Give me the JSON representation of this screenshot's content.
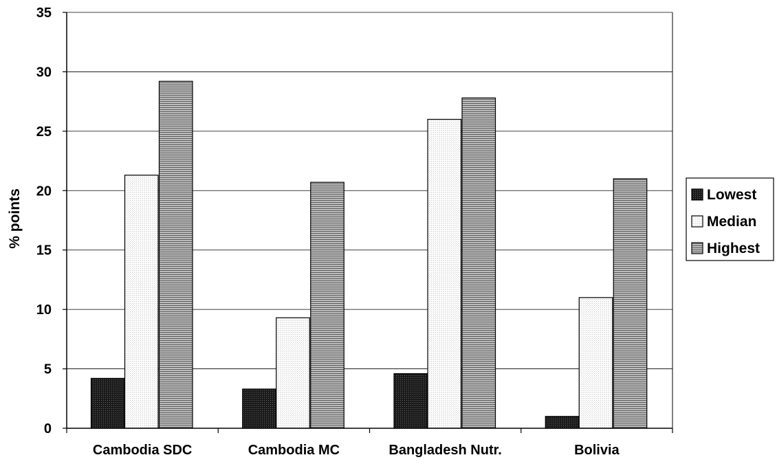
{
  "chart_data": {
    "type": "bar",
    "title": "",
    "xlabel": "",
    "ylabel": "% points",
    "ylim": [
      0,
      35
    ],
    "yticks": [
      0,
      5,
      10,
      15,
      20,
      25,
      30,
      35
    ],
    "grid": true,
    "legend_position": "right",
    "categories": [
      "Cambodia SDC",
      "Cambodia MC",
      "Bangladesh Nutr.",
      "Bolivia"
    ],
    "series": [
      {
        "name": "Lowest",
        "values": [
          4.2,
          3.3,
          4.6,
          1.0
        ],
        "pattern": "dark-crosshatch"
      },
      {
        "name": "Median",
        "values": [
          21.3,
          9.3,
          26.0,
          11.0
        ],
        "pattern": "light-dots"
      },
      {
        "name": "Highest",
        "values": [
          29.2,
          20.7,
          27.8,
          21.0
        ],
        "pattern": "horizontal-lines"
      }
    ]
  }
}
